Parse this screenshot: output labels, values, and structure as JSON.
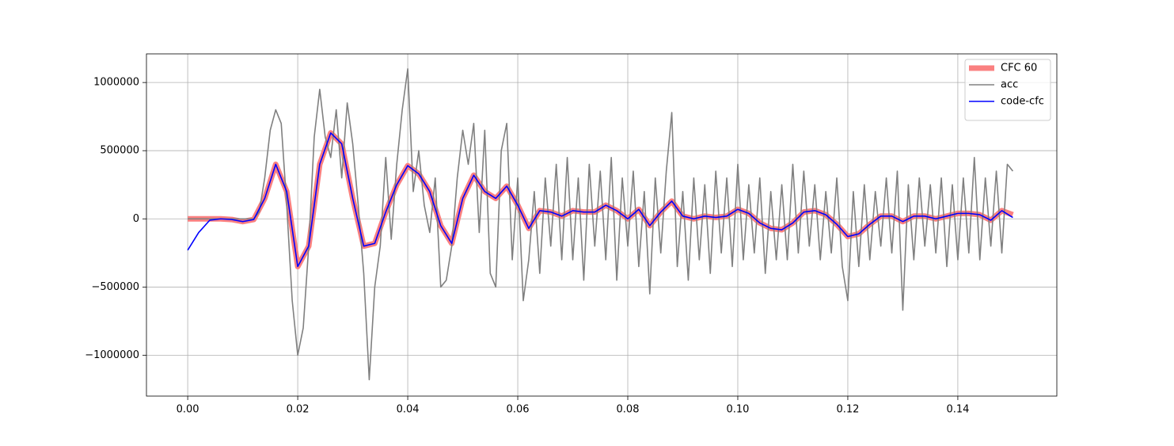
{
  "chart_data": {
    "type": "line",
    "xlim": [
      -0.0075,
      0.158
    ],
    "ylim": [
      -1300000,
      1210000
    ],
    "xticks": [
      {
        "value": 0,
        "label": "0.00"
      },
      {
        "value": 0.02,
        "label": "0.02"
      },
      {
        "value": 0.04,
        "label": "0.04"
      },
      {
        "value": 0.06,
        "label": "0.06"
      },
      {
        "value": 0.08,
        "label": "0.08"
      },
      {
        "value": 0.1,
        "label": "0.10"
      },
      {
        "value": 0.12,
        "label": "0.12"
      },
      {
        "value": 0.14,
        "label": "0.14"
      }
    ],
    "yticks": [
      1000000,
      500000,
      0,
      {
        "value": -500000,
        "label": "−500000"
      },
      {
        "value": -1000000,
        "label": "−1000000"
      }
    ],
    "grid": true,
    "legend": "upper right",
    "x": [
      0,
      0.002,
      0.004,
      0.006,
      0.008,
      0.01,
      0.012,
      0.014,
      0.016,
      0.018,
      0.02,
      0.022,
      0.024,
      0.026,
      0.028,
      0.03,
      0.032,
      0.034,
      0.036,
      0.038,
      0.04,
      0.042,
      0.044,
      0.046,
      0.048,
      0.05,
      0.052,
      0.054,
      0.056,
      0.058,
      0.06,
      0.062,
      0.064,
      0.066,
      0.068,
      0.07,
      0.072,
      0.074,
      0.076,
      0.078,
      0.08,
      0.082,
      0.084,
      0.086,
      0.088,
      0.09,
      0.092,
      0.094,
      0.096,
      0.098,
      0.1,
      0.102,
      0.104,
      0.106,
      0.108,
      0.11,
      0.112,
      0.114,
      0.116,
      0.118,
      0.12,
      0.122,
      0.124,
      0.126,
      0.128,
      0.13,
      0.132,
      0.134,
      0.136,
      0.138,
      0.14,
      0.142,
      0.144,
      0.146,
      0.148,
      0.15
    ],
    "series": [
      {
        "name": "CFC 60",
        "color": "#fa8080",
        "width": 7,
        "values": [
          0,
          0,
          0,
          0,
          -5000,
          -20000,
          -5000,
          150000,
          400000,
          200000,
          -350000,
          -200000,
          400000,
          630000,
          550000,
          150000,
          -200000,
          -180000,
          50000,
          250000,
          390000,
          330000,
          200000,
          -50000,
          -180000,
          150000,
          320000,
          200000,
          150000,
          240000,
          100000,
          -70000,
          60000,
          50000,
          20000,
          60000,
          50000,
          50000,
          100000,
          60000,
          0,
          70000,
          -50000,
          50000,
          130000,
          20000,
          0,
          20000,
          10000,
          20000,
          70000,
          40000,
          -30000,
          -70000,
          -80000,
          -30000,
          50000,
          60000,
          30000,
          -40000,
          -130000,
          -110000,
          -40000,
          20000,
          20000,
          -20000,
          20000,
          20000,
          0,
          20000,
          40000,
          40000,
          30000,
          -10000,
          60000,
          30000
        ]
      },
      {
        "name": "acc",
        "color": "#808080",
        "width": 1.6,
        "x": [
          0,
          0.001,
          0.002,
          0.003,
          0.004,
          0.005,
          0.006,
          0.007,
          0.008,
          0.009,
          0.01,
          0.011,
          0.012,
          0.013,
          0.014,
          0.015,
          0.016,
          0.017,
          0.018,
          0.019,
          0.02,
          0.021,
          0.022,
          0.023,
          0.024,
          0.025,
          0.026,
          0.027,
          0.028,
          0.029,
          0.03,
          0.031,
          0.032,
          0.033,
          0.034,
          0.035,
          0.036,
          0.037,
          0.038,
          0.039,
          0.04,
          0.041,
          0.042,
          0.043,
          0.044,
          0.045,
          0.046,
          0.047,
          0.048,
          0.049,
          0.05,
          0.051,
          0.052,
          0.053,
          0.054,
          0.055,
          0.056,
          0.057,
          0.058,
          0.059,
          0.06,
          0.061,
          0.062,
          0.063,
          0.064,
          0.065,
          0.066,
          0.067,
          0.068,
          0.069,
          0.07,
          0.071,
          0.072,
          0.073,
          0.074,
          0.075,
          0.076,
          0.077,
          0.078,
          0.079,
          0.08,
          0.081,
          0.082,
          0.083,
          0.084,
          0.085,
          0.086,
          0.087,
          0.088,
          0.089,
          0.09,
          0.091,
          0.092,
          0.093,
          0.094,
          0.095,
          0.096,
          0.097,
          0.098,
          0.099,
          0.1,
          0.101,
          0.102,
          0.103,
          0.104,
          0.105,
          0.106,
          0.107,
          0.108,
          0.109,
          0.11,
          0.111,
          0.112,
          0.113,
          0.114,
          0.115,
          0.116,
          0.117,
          0.118,
          0.119,
          0.12,
          0.121,
          0.122,
          0.123,
          0.124,
          0.125,
          0.126,
          0.127,
          0.128,
          0.129,
          0.13,
          0.131,
          0.132,
          0.133,
          0.134,
          0.135,
          0.136,
          0.137,
          0.138,
          0.139,
          0.14,
          0.141,
          0.142,
          0.143,
          0.144,
          0.145,
          0.146,
          0.147,
          0.148,
          0.149,
          0.15
        ],
        "values": [
          0,
          0,
          0,
          0,
          0,
          0,
          0,
          0,
          0,
          0,
          0,
          0,
          0,
          50000,
          300000,
          650000,
          800000,
          700000,
          100000,
          -600000,
          -1000000,
          -800000,
          -200000,
          600000,
          950000,
          600000,
          450000,
          800000,
          300000,
          850000,
          550000,
          100000,
          -400000,
          -1180000,
          -500000,
          -200000,
          450000,
          -150000,
          400000,
          800000,
          1100000,
          200000,
          500000,
          100000,
          -100000,
          300000,
          -500000,
          -450000,
          -200000,
          300000,
          650000,
          400000,
          700000,
          -100000,
          650000,
          -400000,
          -500000,
          500000,
          700000,
          -300000,
          300000,
          -600000,
          -300000,
          200000,
          -400000,
          300000,
          -200000,
          400000,
          -300000,
          450000,
          -300000,
          300000,
          -450000,
          400000,
          -200000,
          350000,
          -300000,
          450000,
          -450000,
          300000,
          -200000,
          350000,
          -350000,
          200000,
          -550000,
          300000,
          -250000,
          350000,
          780000,
          -350000,
          200000,
          -450000,
          300000,
          -300000,
          250000,
          -400000,
          350000,
          -250000,
          300000,
          -350000,
          400000,
          -300000,
          250000,
          -250000,
          300000,
          -400000,
          200000,
          -300000,
          250000,
          -300000,
          400000,
          -250000,
          350000,
          -200000,
          250000,
          -300000,
          200000,
          -250000,
          300000,
          -350000,
          -600000,
          200000,
          -350000,
          250000,
          -300000,
          200000,
          -200000,
          300000,
          -250000,
          350000,
          -670000,
          250000,
          -300000,
          300000,
          -200000,
          250000,
          -250000,
          300000,
          -350000,
          250000,
          -300000,
          300000,
          -250000,
          450000,
          -300000,
          300000,
          -200000,
          350000,
          -250000,
          400000,
          350000
        ]
      },
      {
        "name": "code-cfc",
        "color": "#0000ff",
        "width": 1.6,
        "values": [
          -230000,
          -100000,
          -10000,
          0,
          -5000,
          -20000,
          -5000,
          150000,
          400000,
          200000,
          -350000,
          -200000,
          400000,
          630000,
          550000,
          150000,
          -200000,
          -180000,
          50000,
          250000,
          390000,
          330000,
          200000,
          -50000,
          -180000,
          150000,
          320000,
          200000,
          150000,
          240000,
          100000,
          -70000,
          60000,
          50000,
          20000,
          60000,
          50000,
          50000,
          100000,
          60000,
          0,
          70000,
          -50000,
          50000,
          130000,
          20000,
          0,
          20000,
          10000,
          20000,
          70000,
          40000,
          -30000,
          -70000,
          -80000,
          -30000,
          50000,
          60000,
          30000,
          -40000,
          -130000,
          -110000,
          -40000,
          20000,
          20000,
          -20000,
          20000,
          20000,
          0,
          20000,
          40000,
          40000,
          30000,
          -10000,
          60000,
          10000
        ]
      }
    ]
  }
}
